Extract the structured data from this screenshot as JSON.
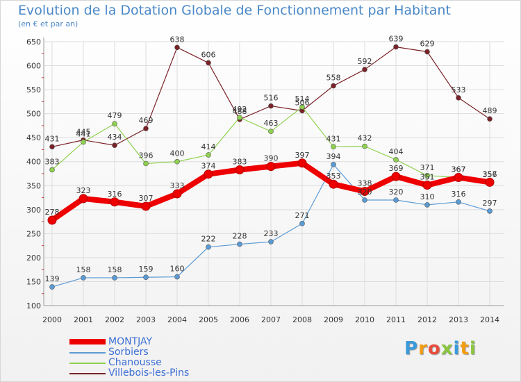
{
  "title": "Evolution de la Dotation Globale de Fonctionnement par Habitant",
  "subtitle": "(en € et par an)",
  "logo": "Proxiti",
  "chart_data": {
    "type": "line",
    "title": "Evolution de la Dotation Globale de Fonctionnement par Habitant",
    "ylabel": "(en € et par an)",
    "xlabel": "",
    "ylim": [
      100,
      650
    ],
    "yticks": [
      100,
      150,
      200,
      250,
      300,
      350,
      400,
      450,
      500,
      550,
      600,
      650
    ],
    "x": [
      "2000",
      "2001",
      "2002",
      "2003",
      "2004",
      "2005",
      "2006",
      "2007",
      "2008",
      "2009",
      "2010",
      "2011",
      "2012",
      "2013",
      "2014"
    ],
    "grid": true,
    "legend": "bottom-left",
    "series": [
      {
        "name": "Villebois-les-Pins",
        "color": "#7a2228",
        "values": [
          431,
          445,
          434,
          469,
          638,
          606,
          488,
          516,
          506,
          558,
          592,
          639,
          629,
          533,
          489
        ]
      },
      {
        "name": "Sorbiers",
        "color": "#5b9bd5",
        "values": [
          139,
          158,
          158,
          159,
          160,
          222,
          228,
          233,
          271,
          394,
          320,
          320,
          310,
          316,
          297
        ]
      },
      {
        "name": "Chanousse",
        "color": "#8fd14f",
        "values": [
          383,
          441,
          479,
          396,
          400,
          414,
          492,
          463,
          514,
          431,
          432,
          404,
          371,
          367,
          356
        ]
      },
      {
        "name": "MONTJAY",
        "color": "#ee0000",
        "values": [
          278,
          323,
          316,
          307,
          333,
          374,
          383,
          390,
          397,
          353,
          338,
          369,
          351,
          367,
          357
        ]
      }
    ]
  }
}
